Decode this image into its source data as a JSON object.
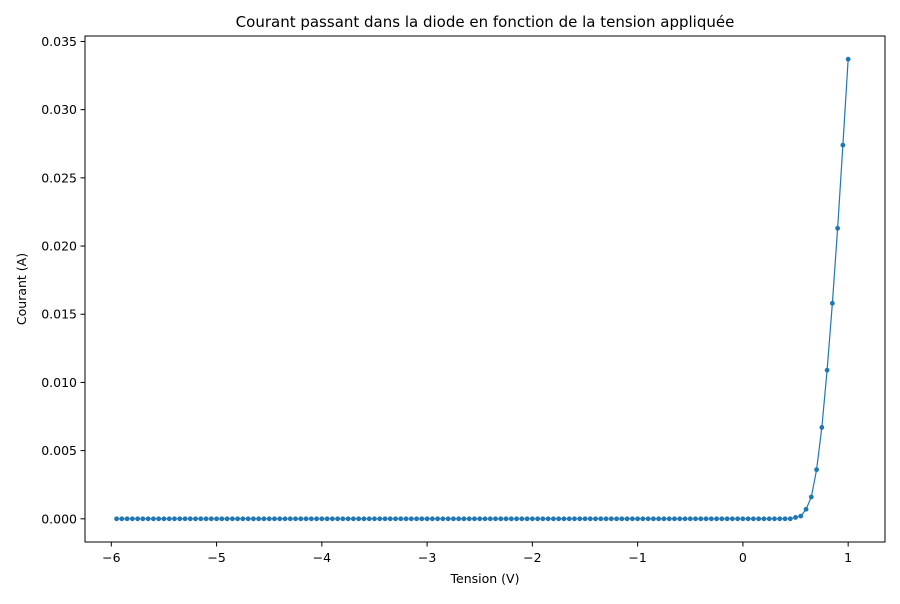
{
  "chart_data": {
    "type": "line",
    "title": "Courant passant dans la diode en fonction de la tension appliquée",
    "xlabel": "Tension (V)",
    "ylabel": "Courant (A)",
    "xlim": [
      -6.25,
      1.35
    ],
    "ylim": [
      -0.0017,
      0.0354
    ],
    "grid": false,
    "legend": "none",
    "x_ticks": [
      -6,
      -5,
      -4,
      -3,
      -2,
      -1,
      0,
      1
    ],
    "x_tick_labels": [
      "−6",
      "−5",
      "−4",
      "−3",
      "−2",
      "−1",
      "0",
      "1"
    ],
    "y_ticks": [
      0.0,
      0.005,
      0.01,
      0.015,
      0.02,
      0.025,
      0.03,
      0.035
    ],
    "y_tick_labels": [
      "0.000",
      "0.005",
      "0.010",
      "0.015",
      "0.020",
      "0.025",
      "0.030",
      "0.035"
    ],
    "series": [
      {
        "color": "#1f77b4",
        "marker": "circle",
        "x": [
          -5.95,
          -5.9,
          -5.85,
          -5.8,
          -5.75,
          -5.7,
          -5.65,
          -5.6,
          -5.55,
          -5.5,
          -5.45,
          -5.4,
          -5.35,
          -5.3,
          -5.25,
          -5.2,
          -5.15,
          -5.1,
          -5.05,
          -5.0,
          -4.95,
          -4.9,
          -4.85,
          -4.8,
          -4.75,
          -4.7,
          -4.65,
          -4.6,
          -4.55,
          -4.5,
          -4.45,
          -4.4,
          -4.35,
          -4.3,
          -4.25,
          -4.2,
          -4.15,
          -4.1,
          -4.05,
          -4.0,
          -3.95,
          -3.9,
          -3.85,
          -3.8,
          -3.75,
          -3.7,
          -3.65,
          -3.6,
          -3.55,
          -3.5,
          -3.45,
          -3.4,
          -3.35,
          -3.3,
          -3.25,
          -3.2,
          -3.15,
          -3.1,
          -3.05,
          -3.0,
          -2.95,
          -2.9,
          -2.85,
          -2.8,
          -2.75,
          -2.7,
          -2.65,
          -2.6,
          -2.55,
          -2.5,
          -2.45,
          -2.4,
          -2.35,
          -2.3,
          -2.25,
          -2.2,
          -2.15,
          -2.1,
          -2.05,
          -2.0,
          -1.95,
          -1.9,
          -1.85,
          -1.8,
          -1.75,
          -1.7,
          -1.65,
          -1.6,
          -1.55,
          -1.5,
          -1.45,
          -1.4,
          -1.35,
          -1.3,
          -1.25,
          -1.2,
          -1.15,
          -1.1,
          -1.05,
          -1.0,
          -0.95,
          -0.9,
          -0.85,
          -0.8,
          -0.75,
          -0.7,
          -0.65,
          -0.6,
          -0.55,
          -0.5,
          -0.45,
          -0.4,
          -0.35,
          -0.3,
          -0.25,
          -0.2,
          -0.15,
          -0.1,
          -0.05,
          0.0,
          0.05,
          0.1,
          0.15,
          0.2,
          0.25,
          0.3,
          0.35,
          0.4,
          0.45,
          0.5,
          0.55,
          0.6,
          0.65,
          0.7,
          0.75,
          0.8,
          0.85,
          0.9,
          0.95,
          1.0
        ],
        "y": [
          0.0,
          0.0,
          0.0,
          0.0,
          0.0,
          0.0,
          0.0,
          0.0,
          0.0,
          0.0,
          0.0,
          0.0,
          0.0,
          0.0,
          0.0,
          0.0,
          0.0,
          0.0,
          0.0,
          0.0,
          0.0,
          0.0,
          0.0,
          0.0,
          0.0,
          0.0,
          0.0,
          0.0,
          0.0,
          0.0,
          0.0,
          0.0,
          0.0,
          0.0,
          0.0,
          0.0,
          0.0,
          0.0,
          0.0,
          0.0,
          0.0,
          0.0,
          0.0,
          0.0,
          0.0,
          0.0,
          0.0,
          0.0,
          0.0,
          0.0,
          0.0,
          0.0,
          0.0,
          0.0,
          0.0,
          0.0,
          0.0,
          0.0,
          0.0,
          0.0,
          0.0,
          0.0,
          0.0,
          0.0,
          0.0,
          0.0,
          0.0,
          0.0,
          0.0,
          0.0,
          0.0,
          0.0,
          0.0,
          0.0,
          0.0,
          0.0,
          0.0,
          0.0,
          0.0,
          0.0,
          0.0,
          0.0,
          0.0,
          0.0,
          0.0,
          0.0,
          0.0,
          0.0,
          0.0,
          0.0,
          0.0,
          0.0,
          0.0,
          0.0,
          0.0,
          0.0,
          0.0,
          0.0,
          0.0,
          0.0,
          0.0,
          0.0,
          0.0,
          0.0,
          0.0,
          0.0,
          0.0,
          0.0,
          0.0,
          0.0,
          0.0,
          0.0,
          0.0,
          0.0,
          0.0,
          0.0,
          0.0,
          0.0,
          0.0,
          0.0,
          0.0,
          0.0,
          0.0,
          0.0,
          0.0,
          0.0,
          0.0,
          0.0,
          0.0,
          0.0001,
          0.0002,
          0.0007,
          0.0016,
          0.0036,
          0.0067,
          0.0109,
          0.0158,
          0.0213,
          0.0274,
          0.0337
        ]
      }
    ]
  }
}
